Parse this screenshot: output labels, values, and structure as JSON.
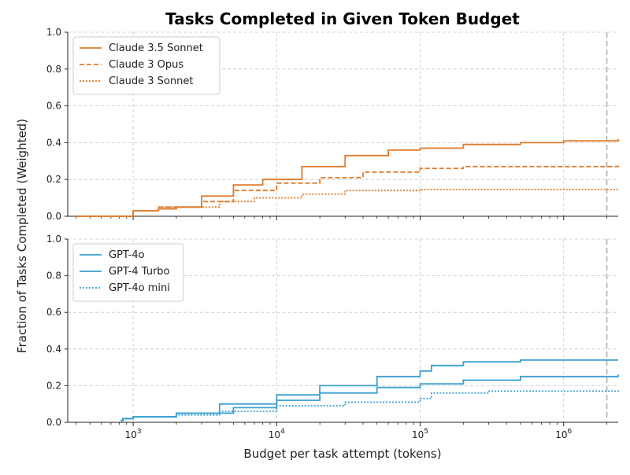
{
  "title": "Tasks Completed in Given Token Budget",
  "ylabel": "Fraction of Tasks Completed (Weighted)",
  "xlabel": "Budget per task attempt (tokens)",
  "colors": {
    "orange": "#e07b2a",
    "blue": "#3a9fd0",
    "grid": "#c8c8c8",
    "vline": "#aaaaaa"
  },
  "chart_data": [
    {
      "type": "line",
      "xscale": "log",
      "xlim": [
        350,
        2400000
      ],
      "ylim": [
        0,
        1.0
      ],
      "yticks": [
        "0.0",
        "0.2",
        "0.4",
        "0.6",
        "0.8",
        "1.0"
      ],
      "grid": true,
      "legend_position": "top-left",
      "vline_x": 2000000,
      "series": [
        {
          "name": "Claude 3.5 Sonnet",
          "style": "solid",
          "points": [
            [
              400,
              0
            ],
            [
              800,
              0
            ],
            [
              1000,
              0.03
            ],
            [
              1500,
              0.04
            ],
            [
              2000,
              0.05
            ],
            [
              3000,
              0.11
            ],
            [
              5000,
              0.17
            ],
            [
              8000,
              0.2
            ],
            [
              15000,
              0.27
            ],
            [
              30000,
              0.33
            ],
            [
              60000,
              0.36
            ],
            [
              100000,
              0.37
            ],
            [
              200000,
              0.39
            ],
            [
              500000,
              0.4
            ],
            [
              1000000,
              0.41
            ],
            [
              2400000,
              0.42
            ]
          ]
        },
        {
          "name": "Claude 3 Opus",
          "style": "dashed",
          "points": [
            [
              400,
              0
            ],
            [
              800,
              0
            ],
            [
              1000,
              0.03
            ],
            [
              1500,
              0.05
            ],
            [
              2000,
              0.05
            ],
            [
              3000,
              0.08
            ],
            [
              5000,
              0.14
            ],
            [
              10000,
              0.18
            ],
            [
              20000,
              0.21
            ],
            [
              40000,
              0.24
            ],
            [
              100000,
              0.26
            ],
            [
              200000,
              0.27
            ],
            [
              2400000,
              0.28
            ]
          ]
        },
        {
          "name": "Claude 3 Sonnet",
          "style": "dotted",
          "points": [
            [
              400,
              0
            ],
            [
              800,
              0
            ],
            [
              1000,
              0.03
            ],
            [
              1500,
              0.05
            ],
            [
              2000,
              0.05
            ],
            [
              4000,
              0.08
            ],
            [
              7000,
              0.1
            ],
            [
              15000,
              0.12
            ],
            [
              30000,
              0.14
            ],
            [
              100000,
              0.145
            ],
            [
              2400000,
              0.15
            ]
          ]
        }
      ]
    },
    {
      "type": "line",
      "xscale": "log",
      "xlim": [
        350,
        2400000
      ],
      "ylim": [
        0,
        1.0
      ],
      "yticks": [
        "0.0",
        "0.2",
        "0.4",
        "0.6",
        "0.8",
        "1.0"
      ],
      "xticks": [
        {
          "base": "10",
          "exp": "3",
          "value": 1000
        },
        {
          "base": "10",
          "exp": "4",
          "value": 10000
        },
        {
          "base": "10",
          "exp": "5",
          "value": 100000
        },
        {
          "base": "10",
          "exp": "6",
          "value": 1000000
        }
      ],
      "grid": true,
      "legend_position": "top-left",
      "vline_x": 2000000,
      "series": [
        {
          "name": "GPT-4o",
          "style": "solid",
          "points": [
            [
              820,
              0.01
            ],
            [
              850,
              0.02
            ],
            [
              1000,
              0.03
            ],
            [
              2000,
              0.05
            ],
            [
              4000,
              0.1
            ],
            [
              10000,
              0.15
            ],
            [
              20000,
              0.2
            ],
            [
              50000,
              0.25
            ],
            [
              100000,
              0.28
            ],
            [
              115000,
              0.28
            ],
            [
              120000,
              0.31
            ],
            [
              200000,
              0.33
            ],
            [
              500000,
              0.34
            ],
            [
              2400000,
              0.34
            ]
          ]
        },
        {
          "name": "GPT-4 Turbo",
          "style": "solid",
          "points": [
            [
              820,
              0.01
            ],
            [
              850,
              0.02
            ],
            [
              1000,
              0.03
            ],
            [
              2000,
              0.05
            ],
            [
              5000,
              0.08
            ],
            [
              10000,
              0.12
            ],
            [
              20000,
              0.16
            ],
            [
              50000,
              0.19
            ],
            [
              100000,
              0.21
            ],
            [
              200000,
              0.23
            ],
            [
              500000,
              0.25
            ],
            [
              2400000,
              0.26
            ]
          ]
        },
        {
          "name": "GPT-4o mini",
          "style": "dotted",
          "points": [
            [
              820,
              0.01
            ],
            [
              850,
              0.02
            ],
            [
              1000,
              0.03
            ],
            [
              2000,
              0.04
            ],
            [
              4000,
              0.06
            ],
            [
              10000,
              0.09
            ],
            [
              30000,
              0.11
            ],
            [
              100000,
              0.13
            ],
            [
              115000,
              0.13
            ],
            [
              120000,
              0.16
            ],
            [
              300000,
              0.17
            ],
            [
              2400000,
              0.18
            ]
          ]
        }
      ]
    }
  ]
}
